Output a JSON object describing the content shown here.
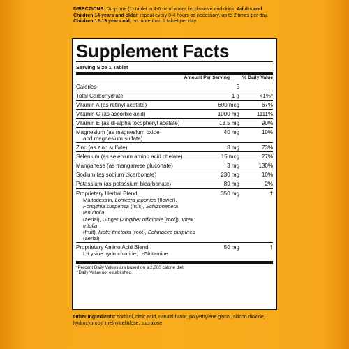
{
  "directions": {
    "label": "DIRECTIONS:",
    "text1": " Drop one (1) tablet in 4-6 oz of water, let dissolve and drink.",
    "adults_label": "Adults and Children 14 years and older,",
    "text2": " repeat every 3-4 hours as necessary, up to 2 times per day. ",
    "children_label": "Children 12-13 years old,",
    "text3": " no more than 1 tablet per day."
  },
  "panel": {
    "title": "Supplement Facts",
    "serving_size": "Serving Size 1 Tablet",
    "header_amount": "Amount Per Serving",
    "header_dv": "% Daily Value",
    "rows": [
      {
        "name": "Calories",
        "amount": "5",
        "dv": ""
      },
      {
        "name": "Total Carbohydrate",
        "amount": "1 g",
        "dv": "<1%*"
      },
      {
        "name": "Vitamin A (as retinyl acetate)",
        "amount": "600 mcg",
        "dv": "67%"
      },
      {
        "name": "Vitamin C (as ascorbic acid)",
        "amount": "1000 mg",
        "dv": "1111%"
      },
      {
        "name": "Vitamin E (as dl-alpha tocopheryl acetate)",
        "amount": "13.5 mg",
        "dv": "90%"
      },
      {
        "name": "Magnesium (as magnesium oxide",
        "name2": "and magnesium sulfate)",
        "amount": "40 mg",
        "dv": "10%"
      },
      {
        "name": "Zinc (as zinc sulfate)",
        "amount": "8 mg",
        "dv": "73%"
      },
      {
        "name": "Selenium (as selenium amino acid chelate)",
        "amount": "15 mcg",
        "dv": "27%"
      },
      {
        "name": "Manganese (as manganese gluconate)",
        "amount": "3 mg",
        "dv": "130%"
      },
      {
        "name": "Sodium (as sodium bicarbonate)",
        "amount": "230 mg",
        "dv": "10%"
      },
      {
        "name": "Potassium (as potassium bicarbonate)",
        "amount": "80 mg",
        "dv": "2%"
      }
    ],
    "herbal": {
      "name": "Proprietary Herbal Blend",
      "amount": "350 mg",
      "dv": "†",
      "l1a": "Maltodextrin, ",
      "l1b": "Lonicera japonica",
      "l1c": " (flower),",
      "l2a": "Forsythia suspensa",
      "l2b": " (fruit), ",
      "l2c": "Schizonepeta tenuifolia",
      "l3a": "(aerial), Ginger (",
      "l3b": "Zingiber officinale",
      "l3c": " [root]), ",
      "l3d": "Vitex trifolia",
      "l4a": "(fruit), ",
      "l4b": "Isatis tinctoria",
      "l4c": " (root), ",
      "l4d": "Echinacea purpurea",
      "l4e": " (aerial)"
    },
    "amino": {
      "name": "Proprietary Amino Acid Blend",
      "amount": "50 mg",
      "dv": "†",
      "line": "L-Lysine hydrochloride, L-Glutamine"
    },
    "footnote1": "*Percent Daily Values are based on a 2,000 calorie diet.",
    "footnote2": "†Daily Value not established."
  },
  "other": {
    "label": "Other Ingredients:",
    "text": " sorbitol, citric acid, natural flavor, polyethylene glycol, silicon dioxide, hydroxypropyl methylcellulose, sucralose"
  }
}
